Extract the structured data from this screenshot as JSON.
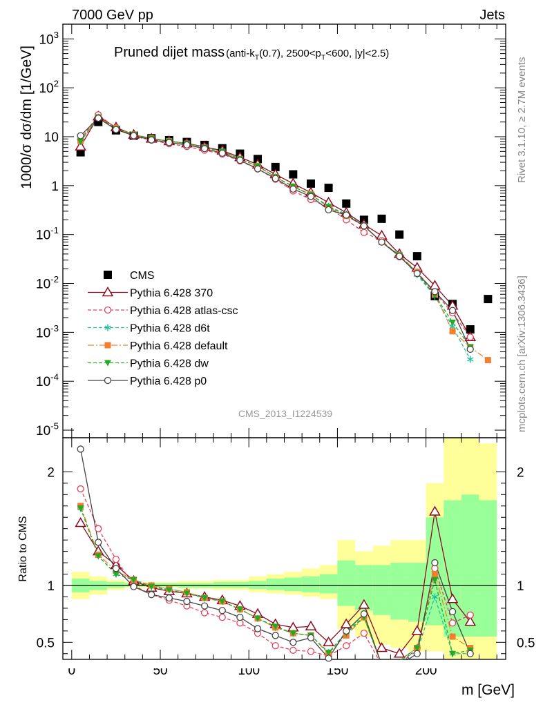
{
  "header": {
    "energy_label": "7000 GeV pp",
    "category_label": "Jets",
    "title_main": "Pruned dijet mass",
    "title_sub": "(anti-k_T(0.7), 2500<p_T<600, |y|<2.5)",
    "watermark": "CMS_2013_I1224539",
    "right_top": "Rivet 3.1.10, ≥ 2.7M events",
    "right_bottom": "mcplots.cern.ch [arXiv:1306.3436]"
  },
  "colors": {
    "cms": "#000000",
    "p370": "#8b0a1e",
    "atlas": "#e8405a",
    "d6t": "#20c0a0",
    "default": "#f08030",
    "dw": "#22aa22",
    "p0": "#444444",
    "band_yellow": "#ffff99",
    "band_green": "#99ff99"
  },
  "chart_data": [
    {
      "type": "scatter",
      "panel": "main",
      "ylabel": "1000/σ dσ/dm [1/GeV]",
      "yscale": "log",
      "ylim": [
        7e-06,
        2000
      ],
      "xlim": [
        -5,
        245
      ],
      "y_tick_labels": [
        "10^3",
        "10^2",
        "10",
        "1",
        "10^-1",
        "10^-2",
        "10^-3",
        "10^-4",
        "10^-5"
      ],
      "legend_position": "lower-left",
      "x": [
        5,
        15,
        25,
        35,
        45,
        55,
        65,
        75,
        85,
        95,
        105,
        115,
        125,
        135,
        145,
        155,
        165,
        175,
        185,
        195,
        205,
        215,
        225,
        235
      ],
      "series": [
        {
          "name": "CMS",
          "key": "cms",
          "values": [
            4.8,
            20,
            13.5,
            10.5,
            9.3,
            8.5,
            7.8,
            6.8,
            5.8,
            4.5,
            3.5,
            2.4,
            1.7,
            1.1,
            0.9,
            0.43,
            0.2,
            0.21,
            0.1,
            0.036,
            0.0055,
            0.0038,
            0.00115,
            0.0048
          ]
        },
        {
          "name": "Pythia 6.428 370",
          "key": "p370",
          "values": [
            6.3,
            26,
            15.5,
            11,
            9.1,
            8.1,
            7.3,
            6.2,
            5.2,
            3.8,
            2.7,
            1.7,
            1.1,
            0.72,
            0.45,
            0.28,
            0.16,
            0.095,
            0.04,
            0.021,
            0.009,
            0.0035,
            0.0008,
            null
          ]
        },
        {
          "name": "Pythia 6.428 atlas-csc",
          "key": "atlas",
          "values": [
            8.7,
            28,
            15,
            10.2,
            8.5,
            7.2,
            6.3,
            5.3,
            4.4,
            3.2,
            2.2,
            1.35,
            0.78,
            0.52,
            0.36,
            0.2,
            0.11,
            0.075,
            0.035,
            0.017,
            0.0065,
            0.0025,
            0.0008,
            null
          ]
        },
        {
          "name": "Pythia 6.428 d6t",
          "key": "d6t",
          "values": [
            8.0,
            25,
            14.5,
            11,
            9.2,
            8.1,
            7.3,
            6.0,
            5.0,
            3.5,
            2.5,
            1.5,
            0.95,
            0.65,
            0.38,
            0.26,
            0.15,
            0.07,
            0.038,
            0.015,
            0.0055,
            0.0013,
            0.00028,
            null
          ]
        },
        {
          "name": "Pythia 6.428 default",
          "key": "default",
          "values": [
            8.2,
            25,
            15,
            11,
            9.3,
            8.1,
            7.2,
            6.0,
            4.9,
            3.5,
            2.5,
            1.5,
            0.95,
            0.66,
            0.36,
            0.24,
            0.15,
            0.07,
            0.038,
            0.017,
            0.006,
            0.00105,
            0.0005,
            0.00027
          ]
        },
        {
          "name": "Pythia 6.428 dw",
          "key": "dw",
          "values": [
            8.0,
            25,
            14.5,
            11,
            9.2,
            8.1,
            7.2,
            6.0,
            5.0,
            3.5,
            2.5,
            1.5,
            0.96,
            0.65,
            0.37,
            0.25,
            0.15,
            0.07,
            0.038,
            0.016,
            0.0058,
            0.0016,
            0.0005,
            null
          ]
        },
        {
          "name": "Pythia 6.428 p0",
          "key": "p0",
          "values": [
            10.5,
            24,
            14,
            10.5,
            8.6,
            7.6,
            6.8,
            5.7,
            4.6,
            3.3,
            2.2,
            1.4,
            0.85,
            0.6,
            0.32,
            0.25,
            0.15,
            0.07,
            0.036,
            0.016,
            0.0068,
            0.0028,
            0.00045,
            null
          ]
        }
      ]
    },
    {
      "type": "line",
      "panel": "ratio",
      "ylabel": "Ratio to CMS",
      "xlabel": "m [GeV]",
      "ylim": [
        0.35,
        2.3
      ],
      "xlim": [
        -5,
        245
      ],
      "x_tick_labels": [
        "0",
        "50",
        "100",
        "150",
        "200"
      ],
      "y_tick_labels": [
        "0.5",
        "1",
        "2"
      ],
      "reference_line": 1,
      "x": [
        5,
        15,
        25,
        35,
        45,
        55,
        65,
        75,
        85,
        95,
        105,
        115,
        125,
        135,
        145,
        155,
        165,
        175,
        185,
        195,
        205,
        215,
        225
      ],
      "series": [
        {
          "key": "p370",
          "values": [
            1.55,
            1.3,
            1.18,
            1.04,
            0.98,
            0.95,
            0.93,
            0.9,
            0.87,
            0.82,
            0.75,
            0.66,
            0.63,
            0.64,
            0.5,
            0.66,
            0.83,
            0.45,
            0.4,
            0.6,
            1.65,
            0.88,
            0.68
          ]
        },
        {
          "key": "atlas",
          "values": [
            1.85,
            1.5,
            1.23,
            1.0,
            0.92,
            0.87,
            0.82,
            0.76,
            0.72,
            0.67,
            0.58,
            0.47,
            0.43,
            0.42,
            0.38,
            0.47,
            0.58,
            0.3,
            0.3,
            0.45,
            1.15,
            0.67,
            0.74
          ]
        },
        {
          "key": "d6t",
          "values": [
            1.68,
            1.26,
            1.1,
            1.05,
            0.99,
            0.97,
            0.94,
            0.89,
            0.86,
            0.79,
            0.71,
            0.63,
            0.58,
            0.56,
            0.41,
            0.59,
            0.73,
            0.3,
            0.34,
            0.42,
            0.9,
            0.4,
            0.4
          ]
        },
        {
          "key": "default",
          "values": [
            1.7,
            1.27,
            1.13,
            1.05,
            1.0,
            0.97,
            0.94,
            0.89,
            0.86,
            0.79,
            0.71,
            0.63,
            0.58,
            0.56,
            0.4,
            0.56,
            0.72,
            0.3,
            0.34,
            0.45,
            1.1,
            0.55,
            0.45
          ]
        },
        {
          "key": "dw",
          "values": [
            1.68,
            1.26,
            1.1,
            1.05,
            0.99,
            0.96,
            0.93,
            0.89,
            0.86,
            0.79,
            0.71,
            0.64,
            0.58,
            0.56,
            0.41,
            0.58,
            0.72,
            0.3,
            0.34,
            0.45,
            1.05,
            0.4,
            0.43
          ]
        },
        {
          "key": "p0",
          "values": [
            2.2,
            1.38,
            1.15,
            0.99,
            0.92,
            0.89,
            0.86,
            0.82,
            0.78,
            0.72,
            0.62,
            0.56,
            0.5,
            0.54,
            0.36,
            0.6,
            0.75,
            0.3,
            0.3,
            0.4,
            1.2,
            0.77,
            0.4
          ]
        }
      ],
      "uncertainty_bands": {
        "bins": [
          [
            0,
            10
          ],
          [
            10,
            20
          ],
          [
            20,
            30
          ],
          [
            30,
            40
          ],
          [
            40,
            50
          ],
          [
            50,
            60
          ],
          [
            60,
            70
          ],
          [
            70,
            80
          ],
          [
            80,
            90
          ],
          [
            90,
            100
          ],
          [
            100,
            110
          ],
          [
            110,
            120
          ],
          [
            120,
            130
          ],
          [
            130,
            140
          ],
          [
            140,
            150
          ],
          [
            150,
            160
          ],
          [
            160,
            170
          ],
          [
            170,
            180
          ],
          [
            180,
            190
          ],
          [
            190,
            200
          ],
          [
            200,
            210
          ],
          [
            210,
            220
          ],
          [
            220,
            230
          ],
          [
            230,
            240
          ]
        ],
        "yellow": [
          [
            0.88,
            1.12
          ],
          [
            0.92,
            1.08
          ],
          [
            0.96,
            1.05
          ],
          [
            0.98,
            1.03
          ],
          [
            0.98,
            1.03
          ],
          [
            0.98,
            1.03
          ],
          [
            0.97,
            1.04
          ],
          [
            0.97,
            1.04
          ],
          [
            0.96,
            1.05
          ],
          [
            0.96,
            1.05
          ],
          [
            0.94,
            1.08
          ],
          [
            0.93,
            1.1
          ],
          [
            0.92,
            1.12
          ],
          [
            0.9,
            1.15
          ],
          [
            0.88,
            1.18
          ],
          [
            0.62,
            1.4
          ],
          [
            0.55,
            1.3
          ],
          [
            0.48,
            1.35
          ],
          [
            0.45,
            1.4
          ],
          [
            0.42,
            1.4
          ],
          [
            0.42,
            1.9
          ],
          [
            0.35,
            2.3
          ],
          [
            0.35,
            2.3
          ],
          [
            0.35,
            2.25
          ]
        ],
        "green": [
          [
            0.94,
            1.06
          ],
          [
            0.96,
            1.04
          ],
          [
            0.98,
            1.03
          ],
          [
            0.99,
            1.02
          ],
          [
            0.99,
            1.02
          ],
          [
            0.99,
            1.02
          ],
          [
            0.98,
            1.02
          ],
          [
            0.98,
            1.02
          ],
          [
            0.98,
            1.03
          ],
          [
            0.98,
            1.03
          ],
          [
            0.97,
            1.04
          ],
          [
            0.96,
            1.06
          ],
          [
            0.95,
            1.07
          ],
          [
            0.94,
            1.08
          ],
          [
            0.93,
            1.1
          ],
          [
            0.82,
            1.22
          ],
          [
            0.78,
            1.18
          ],
          [
            0.74,
            1.18
          ],
          [
            0.7,
            1.2
          ],
          [
            0.68,
            1.2
          ],
          [
            0.65,
            1.6
          ],
          [
            0.55,
            1.75
          ],
          [
            0.55,
            1.8
          ],
          [
            0.55,
            1.75
          ]
        ]
      }
    }
  ]
}
